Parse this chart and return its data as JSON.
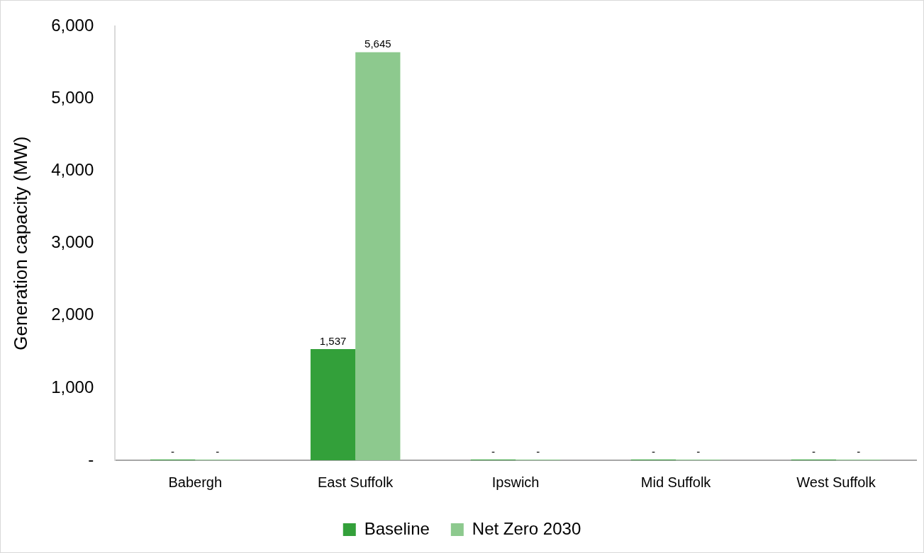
{
  "chart_data": {
    "type": "bar",
    "ylabel": "Generation capacity (MW)",
    "categories": [
      "Babergh",
      "East Suffolk",
      "Ipswich",
      "Mid Suffolk",
      "West Suffolk"
    ],
    "series": [
      {
        "name": "Baseline",
        "color": "#33a03a",
        "values": [
          0,
          1537,
          0,
          0,
          0
        ],
        "value_labels": [
          "-",
          "1,537",
          "-",
          "-",
          "-"
        ]
      },
      {
        "name": "Net Zero 2030",
        "color": "#8dc98e",
        "values": [
          0,
          5645,
          0,
          0,
          0
        ],
        "value_labels": [
          "-",
          "5,645",
          "-",
          "-",
          "-"
        ]
      }
    ],
    "ylim": [
      0,
      6000
    ],
    "yticks": [
      {
        "value": 0,
        "label": "-"
      },
      {
        "value": 1000,
        "label": "1,000"
      },
      {
        "value": 2000,
        "label": "2,000"
      },
      {
        "value": 3000,
        "label": "3,000"
      },
      {
        "value": 4000,
        "label": "4,000"
      },
      {
        "value": 5000,
        "label": "5,000"
      },
      {
        "value": 6000,
        "label": "6,000"
      }
    ],
    "grid": false,
    "legend": "bottom"
  }
}
